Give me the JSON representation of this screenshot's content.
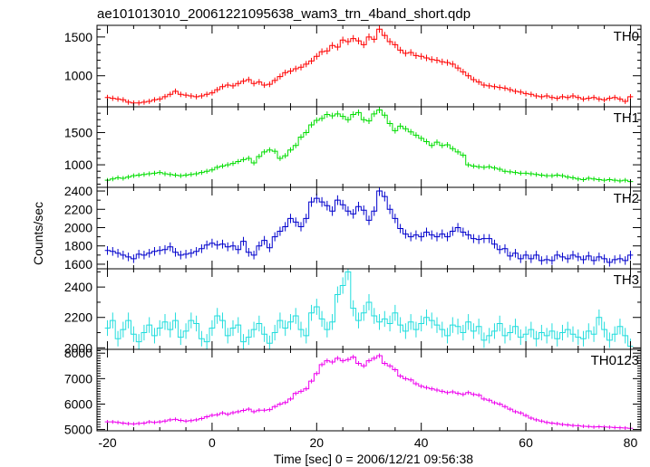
{
  "figure": {
    "title": "ae101013010_20061221095638_wam3_trn_4band_short.qdp",
    "xlabel": "Time [sec] 0 = 2006/12/21 09:56:38",
    "ylabel": "Counts/sec"
  },
  "chart_data": {
    "type": "line",
    "title": "ae101013010_20061221095638_wam3_trn_4band_short.qdp",
    "xlabel": "Time [sec] 0 = 2006/12/21 09:56:38",
    "ylabel": "Counts/sec",
    "xlim": [
      -22,
      82
    ],
    "x_ticks": [
      -20,
      0,
      20,
      40,
      60,
      80
    ],
    "bin_width_sec": 1,
    "step": true,
    "error_bars": true,
    "grid": false,
    "x_start": -20,
    "panels": [
      {
        "name": "TH0",
        "color": "#ff0000",
        "ylim": [
          600,
          1650
        ],
        "yticks": [
          1000,
          1500
        ],
        "values": [
          720,
          710,
          700,
          690,
          660,
          650,
          650,
          660,
          670,
          690,
          700,
          730,
          760,
          800,
          760,
          750,
          740,
          730,
          740,
          760,
          780,
          820,
          860,
          880,
          870,
          900,
          930,
          950,
          900,
          920,
          880,
          890,
          940,
          990,
          1040,
          1060,
          1090,
          1110,
          1150,
          1190,
          1250,
          1310,
          1320,
          1390,
          1370,
          1460,
          1440,
          1480,
          1450,
          1400,
          1500,
          1470,
          1600,
          1520,
          1440,
          1400,
          1330,
          1290,
          1300,
          1260,
          1250,
          1230,
          1210,
          1200,
          1180,
          1170,
          1150,
          1100,
          1050,
          1000,
          950,
          920,
          880,
          870,
          860,
          850,
          840,
          820,
          800,
          790,
          770,
          760,
          740,
          730,
          740,
          720,
          710,
          730,
          720,
          740,
          720,
          700,
          710,
          720,
          700,
          690,
          710,
          720,
          700,
          670,
          730
        ]
      },
      {
        "name": "TH1",
        "color": "#00dd00",
        "ylim": [
          650,
          1900
        ],
        "yticks": [
          1000,
          1500
        ],
        "values": [
          760,
          780,
          800,
          790,
          810,
          830,
          840,
          850,
          860,
          870,
          880,
          860,
          850,
          840,
          830,
          840,
          850,
          860,
          880,
          900,
          920,
          960,
          980,
          1000,
          1020,
          1050,
          1080,
          1100,
          1030,
          1130,
          1200,
          1230,
          1210,
          1100,
          1140,
          1230,
          1300,
          1430,
          1500,
          1620,
          1690,
          1720,
          1780,
          1760,
          1790,
          1750,
          1700,
          1780,
          1810,
          1700,
          1680,
          1790,
          1850,
          1770,
          1640,
          1530,
          1600,
          1560,
          1510,
          1460,
          1410,
          1360,
          1300,
          1350,
          1300,
          1310,
          1250,
          1200,
          1150,
          1000,
          980,
          970,
          960,
          970,
          950,
          930,
          900,
          890,
          880,
          870,
          870,
          860,
          850,
          840,
          830,
          830,
          840,
          830,
          810,
          800,
          780,
          770,
          790,
          780,
          770,
          760,
          770,
          760,
          750,
          760,
          740
        ]
      },
      {
        "name": "TH2",
        "color": "#0000cc",
        "ylim": [
          1550,
          2440
        ],
        "yticks": [
          1600,
          1800,
          2000,
          2200,
          2400
        ],
        "values": [
          1750,
          1740,
          1720,
          1700,
          1680,
          1660,
          1710,
          1700,
          1720,
          1740,
          1750,
          1760,
          1790,
          1730,
          1700,
          1710,
          1720,
          1740,
          1770,
          1810,
          1830,
          1810,
          1820,
          1790,
          1800,
          1760,
          1850,
          1730,
          1700,
          1800,
          1860,
          1780,
          1900,
          1960,
          2010,
          2100,
          2060,
          2010,
          2100,
          2280,
          2320,
          2280,
          2240,
          2180,
          2300,
          2250,
          2180,
          2150,
          2230,
          2190,
          2080,
          2180,
          2400,
          2340,
          2200,
          2100,
          1990,
          1930,
          1900,
          1920,
          1900,
          1950,
          1920,
          1900,
          1930,
          1900,
          1960,
          2000,
          1950,
          1920,
          1880,
          1870,
          1880,
          1880,
          1820,
          1760,
          1770,
          1690,
          1720,
          1660,
          1700,
          1660,
          1700,
          1640,
          1650,
          1640,
          1700,
          1680,
          1660,
          1700,
          1680,
          1650,
          1690,
          1640,
          1680,
          1660,
          1620,
          1650,
          1660,
          1640,
          1700
        ]
      },
      {
        "name": "TH3",
        "color": "#22dddd",
        "ylim": [
          1990,
          2520
        ],
        "yticks": [
          2000,
          2200,
          2400
        ],
        "values": [
          2130,
          2180,
          2060,
          2120,
          2180,
          2090,
          2040,
          2100,
          2150,
          2080,
          2130,
          2170,
          2120,
          2180,
          2070,
          2110,
          2180,
          2160,
          2060,
          2040,
          2130,
          2210,
          2180,
          2080,
          2130,
          2150,
          2040,
          2070,
          2120,
          2160,
          2090,
          2030,
          2100,
          2180,
          2130,
          2170,
          2210,
          2120,
          2080,
          2230,
          2270,
          2190,
          2120,
          2170,
          2350,
          2410,
          2500,
          2260,
          2180,
          2230,
          2300,
          2210,
          2170,
          2190,
          2160,
          2230,
          2150,
          2110,
          2170,
          2120,
          2160,
          2200,
          2180,
          2150,
          2120,
          2080,
          2150,
          2140,
          2100,
          2170,
          2110,
          2140,
          2050,
          2080,
          2110,
          2160,
          2080,
          2100,
          2140,
          2070,
          2090,
          2120,
          2060,
          2100,
          2080,
          2110,
          2060,
          2100,
          2120,
          2090,
          2070,
          2060,
          2110,
          2090,
          2200,
          2120,
          2050,
          2090,
          2140,
          2080,
          2010
        ]
      },
      {
        "name": "TH0123",
        "color": "#ee00ee",
        "ylim": [
          4950,
          8150
        ],
        "yticks": [
          5000,
          6000,
          7000,
          8000
        ],
        "values": [
          5300,
          5300,
          5280,
          5250,
          5230,
          5220,
          5240,
          5250,
          5300,
          5280,
          5300,
          5330,
          5380,
          5400,
          5360,
          5330,
          5350,
          5380,
          5430,
          5500,
          5560,
          5580,
          5650,
          5600,
          5660,
          5700,
          5750,
          5800,
          5700,
          5760,
          5760,
          5780,
          5900,
          6000,
          6060,
          6200,
          6420,
          6500,
          6600,
          6900,
          7200,
          7550,
          7700,
          7650,
          7800,
          7700,
          7750,
          7850,
          7600,
          7500,
          7700,
          7800,
          7900,
          7600,
          7500,
          7350,
          7100,
          7000,
          6950,
          6800,
          6700,
          6650,
          6600,
          6550,
          6500,
          6450,
          6480,
          6420,
          6380,
          6450,
          6380,
          6350,
          6200,
          6150,
          6050,
          6000,
          5900,
          5800,
          5700,
          5650,
          5550,
          5450,
          5380,
          5330,
          5280,
          5250,
          5230,
          5200,
          5180,
          5160,
          5150,
          5130,
          5120,
          5100,
          5110,
          5100,
          5090,
          5080,
          5070,
          5060,
          5050
        ]
      }
    ]
  }
}
